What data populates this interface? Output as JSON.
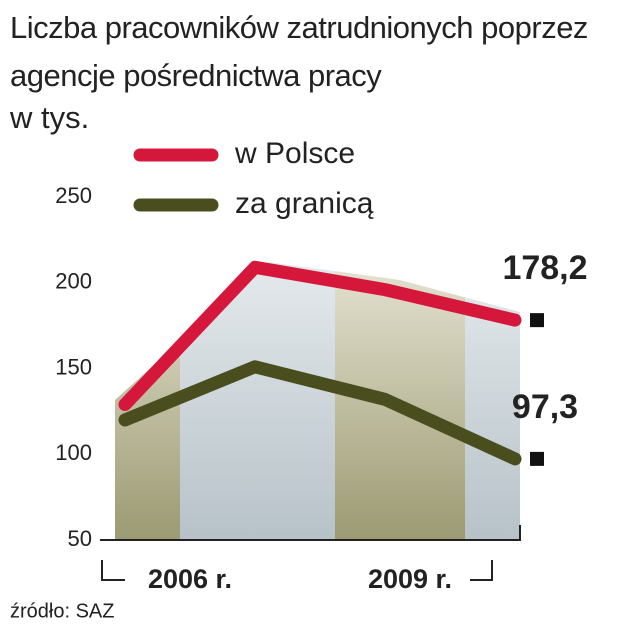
{
  "chart_data": {
    "type": "line",
    "title": "Liczba pracowników zatrudnionych poprzez agencje pośrednictwa pracy",
    "subtitle": "w tys.",
    "categories": [
      "2006 r.",
      null,
      null,
      "2009 r."
    ],
    "series": [
      {
        "name": "w Polsce",
        "color": "#d6173c",
        "values": [
          129,
          209,
          196,
          178.2
        ],
        "value_labels": [
          null,
          null,
          null,
          "178,2"
        ]
      },
      {
        "name": "za granicą",
        "color": "#4a4e1e",
        "values": [
          120,
          151,
          132,
          97.3
        ],
        "value_labels": [
          null,
          null,
          null,
          "97,3"
        ]
      }
    ],
    "ylim": [
      50,
      250
    ],
    "yticks": [
      50,
      100,
      150,
      200,
      250
    ],
    "source": "źródło: SAZ"
  }
}
